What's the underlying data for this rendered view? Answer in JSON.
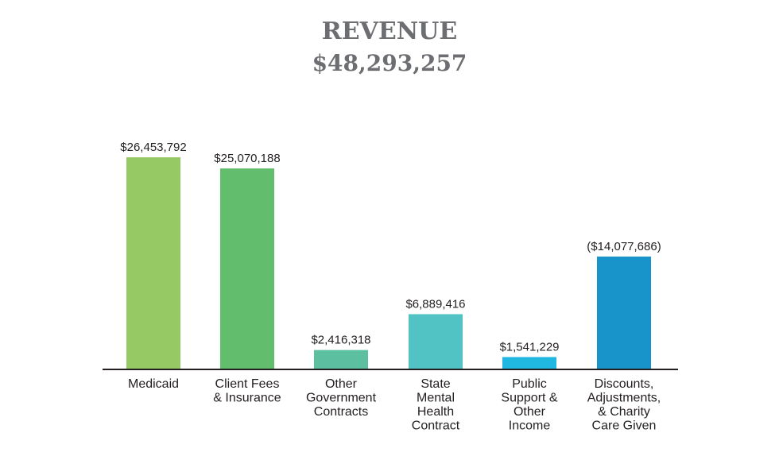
{
  "chart_data": {
    "type": "bar",
    "title": "REVENUE",
    "subtitle": "$48,293,257",
    "categories": [
      [
        "Medicaid"
      ],
      [
        "Client Fees",
        "& Insurance"
      ],
      [
        "Other",
        "Government",
        "Contracts"
      ],
      [
        "State",
        "Mental",
        "Health",
        "Contract"
      ],
      [
        "Public",
        "Support &",
        "Other",
        "Income"
      ],
      [
        "Discounts,",
        "Adjustments,",
        "& Charity",
        "Care Given"
      ]
    ],
    "values": [
      26453792,
      25070188,
      2416318,
      6889416,
      1541229,
      14077686
    ],
    "value_labels": [
      "$26,453,792",
      "$25,070,188",
      "$2,416,318",
      "$6,889,416",
      "$1,541,229",
      "($14,077,686)"
    ],
    "colors": [
      "#96c963",
      "#62bd6d",
      "#5cc0a0",
      "#52c3c5",
      "#20b8e0",
      "#1994cb"
    ],
    "ylim": [
      0,
      30000000
    ],
    "grid": false,
    "legend": "none",
    "baseline_color": "#231f20"
  }
}
